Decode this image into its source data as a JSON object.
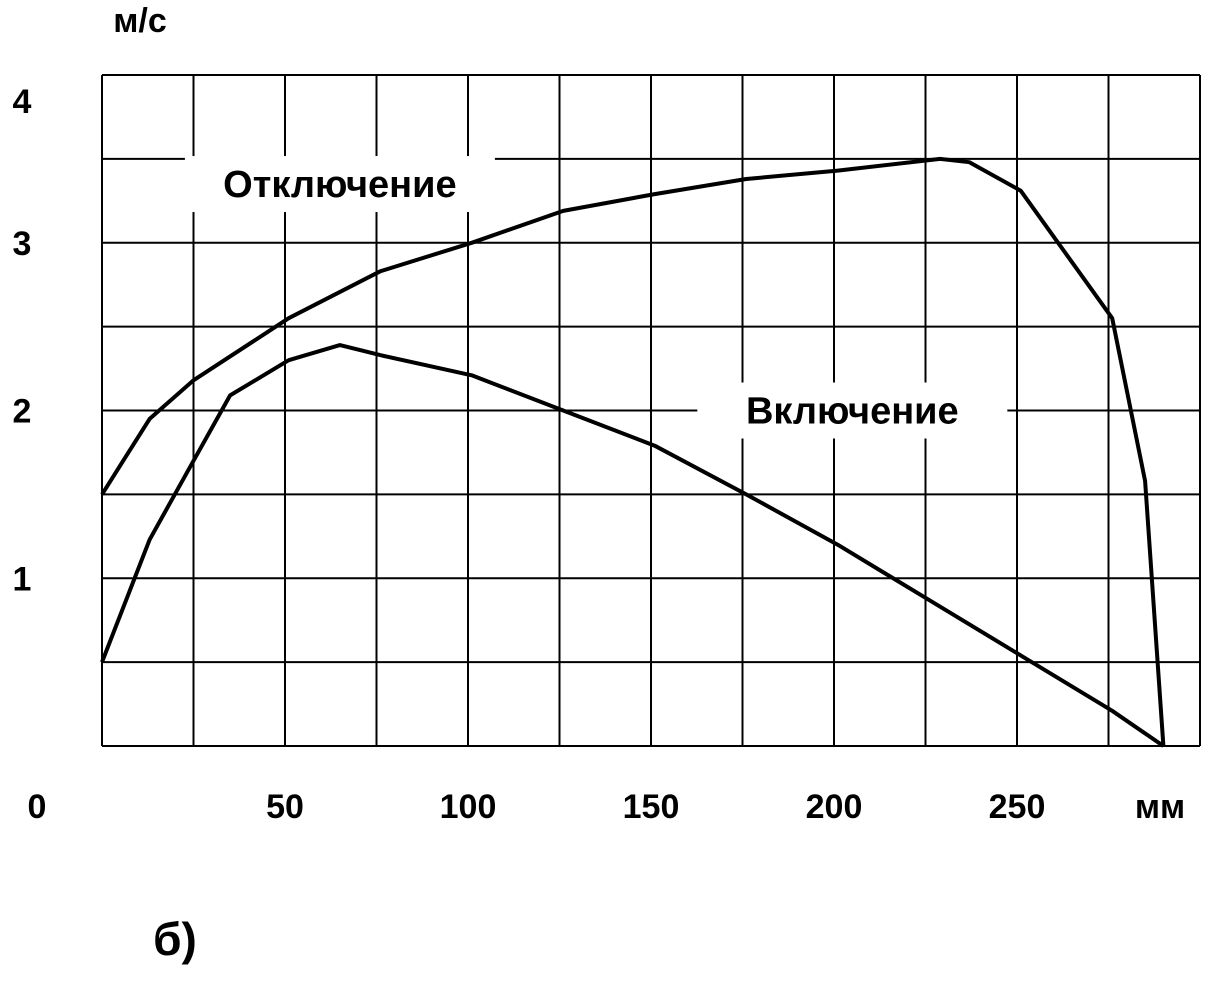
{
  "chart_data": {
    "type": "line",
    "title": "",
    "xlabel": "мм",
    "ylabel": "м/с",
    "panel_label": "б)",
    "xlim": [
      0,
      300
    ],
    "ylim": [
      0,
      4
    ],
    "grid": true,
    "x_grid_step": 25,
    "y_grid_step": 0.5,
    "x_ticks": [
      {
        "value": 0,
        "label": "0"
      },
      {
        "value": 50,
        "label": "50"
      },
      {
        "value": 100,
        "label": "100"
      },
      {
        "value": 150,
        "label": "150"
      },
      {
        "value": 200,
        "label": "200"
      },
      {
        "value": 250,
        "label": "250"
      }
    ],
    "y_ticks": [
      {
        "value": 1,
        "label": "1"
      },
      {
        "value": 2,
        "label": "2"
      },
      {
        "value": 3,
        "label": "3"
      },
      {
        "value": 4,
        "label": "4"
      }
    ],
    "series": [
      {
        "name": "Отключение",
        "label_at": [
          65,
          3.35
        ],
        "x": [
          0,
          13,
          25,
          51,
          76,
          101,
          126,
          151,
          176,
          201,
          229,
          237,
          251,
          276,
          285,
          290
        ],
        "y": [
          1.5,
          1.95,
          2.18,
          2.55,
          2.83,
          3.0,
          3.19,
          3.29,
          3.38,
          3.43,
          3.5,
          3.48,
          3.31,
          2.55,
          1.58,
          0
        ]
      },
      {
        "name": "Включение",
        "label_at": [
          205,
          2.0
        ],
        "x": [
          0,
          13,
          25,
          35,
          51,
          65,
          76,
          101,
          126,
          151,
          176,
          201,
          226,
          251,
          276,
          290
        ],
        "y": [
          0.5,
          1.23,
          1.7,
          2.09,
          2.3,
          2.39,
          2.33,
          2.21,
          2.0,
          1.79,
          1.5,
          1.2,
          0.87,
          0.54,
          0.21,
          0
        ]
      }
    ]
  }
}
